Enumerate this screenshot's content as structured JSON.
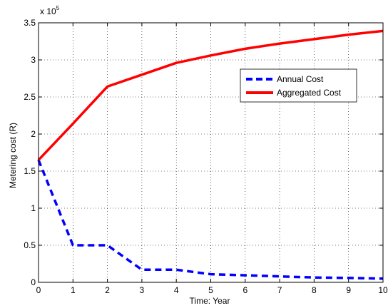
{
  "chart_data": {
    "type": "line",
    "x": [
      0,
      1,
      2,
      3,
      4,
      5,
      6,
      7,
      8,
      9,
      10
    ],
    "series": [
      {
        "name": "Annual Cost",
        "values": [
          165000,
          50000,
          50000,
          17000,
          17000,
          11000,
          9500,
          8000,
          6500,
          6000,
          5000
        ],
        "color": "#0000ff",
        "style": "dashed"
      },
      {
        "name": "Aggregated Cost",
        "values": [
          165000,
          214000,
          264000,
          280000,
          296000,
          306000,
          315000,
          322000,
          328000,
          334000,
          339000
        ],
        "color": "#ff0000",
        "style": "solid"
      }
    ],
    "xlabel": "Time: Year",
    "ylabel": "Metering cost (R)",
    "xlim": [
      0,
      10
    ],
    "ylim": [
      0,
      350000
    ],
    "x_ticks": [
      "0",
      "1",
      "2",
      "3",
      "4",
      "5",
      "6",
      "7",
      "8",
      "9",
      "10"
    ],
    "y_ticks": [
      "0",
      "0.5",
      "1",
      "1.5",
      "2",
      "2.5",
      "3",
      "3.5"
    ],
    "y_multiplier_base": "x 10",
    "y_multiplier_exp": "5",
    "grid": true,
    "legend_position": "upper-right"
  }
}
